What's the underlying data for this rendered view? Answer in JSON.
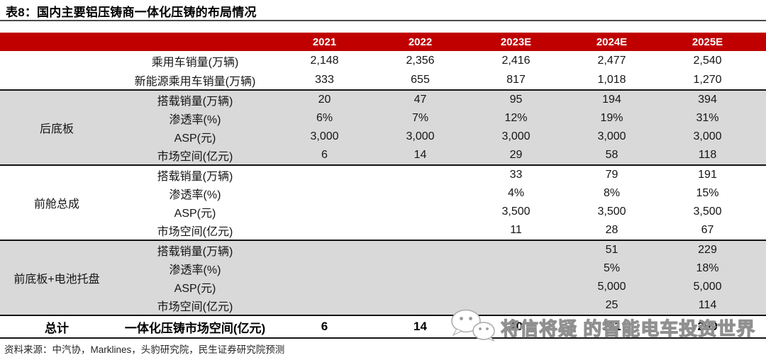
{
  "title": "表8：国内主要铝压铸商一体化压铸的布局情况",
  "colors": {
    "header_bg": "#C00000",
    "shaded_row_bg": "#D9D9D9",
    "title_rule": "#4a4a4a",
    "section_border": "#141414"
  },
  "table": {
    "year_headers": [
      "2021",
      "2022",
      "2023E",
      "2024E",
      "2025E"
    ],
    "base_rows": [
      {
        "label": "乘用车销量(万辆)",
        "values": [
          "2,148",
          "2,356",
          "2,416",
          "2,477",
          "2,540"
        ]
      },
      {
        "label": "新能源乘用车销量(万辆)",
        "values": [
          "333",
          "655",
          "817",
          "1,018",
          "1,270"
        ]
      }
    ],
    "groups": [
      {
        "name": "后底板",
        "shaded": true,
        "rows": [
          {
            "label": "搭载销量(万辆)",
            "values": [
              "20",
              "47",
              "95",
              "194",
              "394"
            ]
          },
          {
            "label": "渗透率(%)",
            "values": [
              "6%",
              "7%",
              "12%",
              "19%",
              "31%"
            ]
          },
          {
            "label": "ASP(元)",
            "values": [
              "3,000",
              "3,000",
              "3,000",
              "3,000",
              "3,000"
            ]
          },
          {
            "label": "市场空间(亿元)",
            "values": [
              "6",
              "14",
              "29",
              "58",
              "118"
            ]
          }
        ]
      },
      {
        "name": "前舱总成",
        "shaded": false,
        "rows": [
          {
            "label": "搭载销量(万辆)",
            "values": [
              "",
              "",
              "33",
              "79",
              "191"
            ]
          },
          {
            "label": "渗透率(%)",
            "values": [
              "",
              "",
              "4%",
              "8%",
              "15%"
            ]
          },
          {
            "label": "ASP(元)",
            "values": [
              "",
              "",
              "3,500",
              "3,500",
              "3,500"
            ]
          },
          {
            "label": "市场空间(亿元)",
            "values": [
              "",
              "",
              "11",
              "28",
              "67"
            ]
          }
        ]
      },
      {
        "name": "前底板+电池托盘",
        "shaded": true,
        "rows": [
          {
            "label": "搭载销量(万辆)",
            "values": [
              "",
              "",
              "",
              "51",
              "229"
            ]
          },
          {
            "label": "渗透率(%)",
            "values": [
              "",
              "",
              "",
              "5%",
              "18%"
            ]
          },
          {
            "label": "ASP(元)",
            "values": [
              "",
              "",
              "",
              "5,000",
              "5,000"
            ]
          },
          {
            "label": "市场空间(亿元)",
            "values": [
              "",
              "",
              "",
              "25",
              "114"
            ]
          }
        ]
      }
    ],
    "total_row": {
      "name": "总计",
      "label": "一体化压铸市场空间(亿元)",
      "values": [
        "6",
        "14",
        "40",
        "111",
        "299"
      ]
    }
  },
  "source": "资料来源：中汽协，Marklines，头豹研究院，民生证券研究院预测",
  "watermark": {
    "icon": "wechat-icon",
    "text": "将信将疑 的智能电车投资世界"
  }
}
